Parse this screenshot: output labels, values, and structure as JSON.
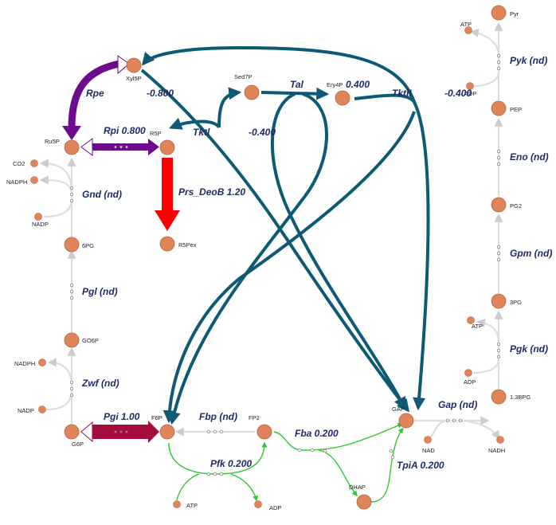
{
  "metabolites": {
    "Xyl5P": "Xyl5P",
    "Ru5P": "Ru5P",
    "R5P": "R5P",
    "R5Pex": "R5Pex",
    "Sed7P": "Sed7P",
    "Ery4P": "Ery4P",
    "CO2": "CO2",
    "NADPH_1": "NADPH",
    "NADP_1": "NADP",
    "6PG": "6PG",
    "GO6P": "GO6P",
    "NADPH_2": "NADPH",
    "NADP_2": "NADP",
    "G6P": "G6P",
    "F6P": "F6P",
    "FP2": "FP2",
    "ATP_pfk": "ATP",
    "ADP_pfk": "ADP",
    "DHAP": "DHAP",
    "GAP": "GAP",
    "NAD": "NAD",
    "NADH": "NADH",
    "1.3BPG": "1.3BPG",
    "ATP_pgk": "ATP",
    "ADP_pgk": "ADP",
    "3PG": "3PG",
    "PG2": "PG2",
    "PEP": "PEP",
    "ATP_pyk": "ATP",
    "ADP_pyk": "ADP",
    "Pyr": "Pyr"
  },
  "reactions": {
    "Rpe": "Rpe",
    "Rpe_flux": "-0.800",
    "Rpi": "Rpi 0.800",
    "Tktl": "Tktl",
    "Tktl_flux": "-0.400",
    "Tal": "Tal",
    "Tal_flux": "0.400",
    "TktII": "TktII",
    "TktII_flux": "-0.400",
    "Prs_DeoB": "Prs_DeoB 1.20",
    "Gnd": "Gnd (nd)",
    "Pgl": "Pgl (nd)",
    "Zwf": "Zwf (nd)",
    "Pgi": "Pgi 1.00",
    "Fbp": "Fbp (nd)",
    "Pfk": "Pfk 0.200",
    "Fba": "Fba 0.200",
    "TpiA": "TpiA 0.200",
    "Gap": "Gap (nd)",
    "Pgk": "Pgk (nd)",
    "Gpm": "Gpm (nd)",
    "Eno": "Eno (nd)",
    "Pyk": "Pyk (nd)"
  },
  "colors": {
    "node": "#e0855a",
    "inactive": "#dddddd",
    "transketolase": "#0c5a73",
    "rpe_rpi": "#6a0c8c",
    "prs": "#ff0000",
    "pgi": "#a30d3c",
    "glycolysis": "#2ec82e",
    "label": "#1f2a66"
  }
}
